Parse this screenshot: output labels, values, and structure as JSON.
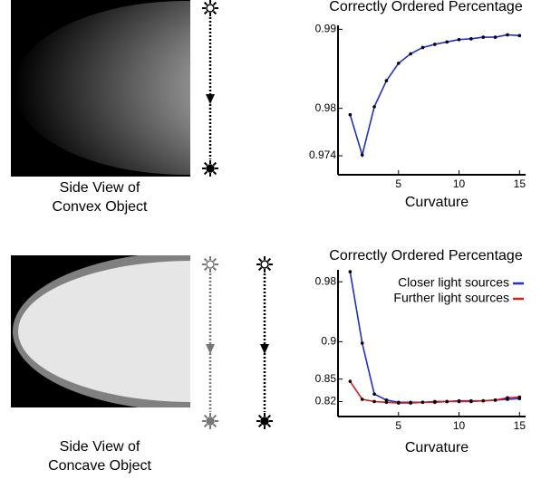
{
  "chart_data": [
    {
      "type": "line",
      "title": "Correctly Ordered Percentage",
      "x_label": "Curvature",
      "x": [
        1,
        2,
        3,
        4,
        5,
        6,
        7,
        8,
        9,
        10,
        11,
        12,
        13,
        14,
        15
      ],
      "series": [
        {
          "color": "#1f2fcc",
          "values": [
            0.9792,
            0.9741,
            0.9802,
            0.9835,
            0.9857,
            0.9869,
            0.9877,
            0.9881,
            0.9884,
            0.9887,
            0.9888,
            0.989,
            0.989,
            0.9893,
            0.9892
          ]
        }
      ],
      "marker_color": "#000000",
      "xlim": [
        0,
        15.5
      ],
      "xticks": [
        5,
        10,
        15
      ],
      "ylim": [
        0.9716,
        0.9905
      ],
      "yticks": [
        0.974,
        0.98,
        0.99
      ]
    },
    {
      "type": "line",
      "title": "Correctly Ordered Percentage",
      "x_label": "Curvature",
      "x": [
        1,
        2,
        3,
        4,
        5,
        6,
        7,
        8,
        9,
        10,
        11,
        12,
        13,
        14,
        15
      ],
      "series": [
        {
          "name": "Closer light sources",
          "color": "#1f2fcc",
          "values": [
            0.9935,
            0.898,
            0.83,
            0.822,
            0.819,
            0.819,
            0.819,
            0.82,
            0.82,
            0.821,
            0.821,
            0.821,
            0.822,
            0.823,
            0.824
          ]
        },
        {
          "name": "Further light sources",
          "color": "#d42020",
          "values": [
            0.847,
            0.823,
            0.82,
            0.819,
            0.818,
            0.818,
            0.819,
            0.819,
            0.82,
            0.82,
            0.82,
            0.821,
            0.822,
            0.825,
            0.826
          ]
        }
      ],
      "marker_color": "#000000",
      "legend": "upper right",
      "xlim": [
        0,
        15.5
      ],
      "xticks": [
        5,
        10,
        15
      ],
      "ylim": [
        0.8,
        0.996
      ],
      "yticks": [
        0.82,
        0.85,
        0.9,
        0.98
      ]
    }
  ],
  "images": [
    {
      "caption": [
        "Side View of",
        "Convex Object"
      ]
    },
    {
      "caption": [
        "Side View of",
        "Concave Object"
      ]
    }
  ]
}
